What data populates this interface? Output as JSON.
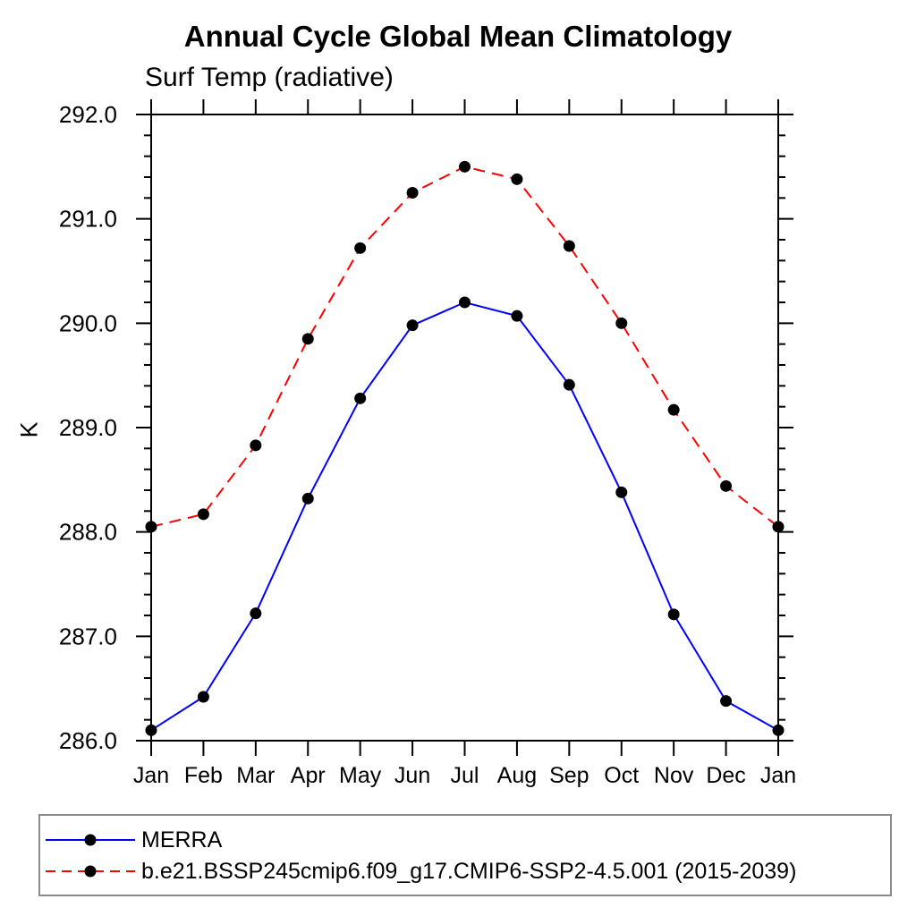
{
  "chart_data": {
    "type": "line",
    "title": "Annual Cycle Global Mean Climatology",
    "subtitle": "Surf Temp (radiative)",
    "ylabel": "K",
    "x_tick_labels": [
      "Jan",
      "Feb",
      "Mar",
      "Apr",
      "May",
      "Jun",
      "Jul",
      "Aug",
      "Sep",
      "Oct",
      "Nov",
      "Dec",
      "Jan"
    ],
    "ylim": [
      286.0,
      292.0
    ],
    "ytick_values": [
      286.0,
      287.0,
      288.0,
      289.0,
      290.0,
      291.0,
      292.0
    ],
    "ytick_labels": [
      "286.0",
      "287.0",
      "288.0",
      "289.0",
      "290.0",
      "291.0",
      "292.0"
    ],
    "yminor_step": 0.2,
    "grid": false,
    "legend_position": "bottom",
    "background_color": "#ffffff",
    "axis_color": "#000000",
    "legend_border_color": "#8a8a8a",
    "series": [
      {
        "name": "MERRA",
        "color": "#0000ff",
        "line_style": "solid",
        "marker": "filled-circle",
        "marker_color": "#000000",
        "values": [
          286.1,
          286.42,
          287.22,
          288.32,
          289.28,
          289.98,
          290.2,
          290.07,
          289.41,
          288.38,
          287.21,
          286.38,
          286.1
        ]
      },
      {
        "name": "b.e21.BSSP245cmip6.f09_g17.CMIP6-SSP2-4.5.001 (2015-2039)",
        "color": "#ff0000",
        "line_style": "dashed",
        "marker": "filled-circle",
        "marker_color": "#000000",
        "values": [
          288.05,
          288.17,
          288.83,
          289.85,
          290.72,
          291.25,
          291.5,
          291.38,
          290.74,
          290.0,
          289.17,
          288.44,
          288.05
        ]
      }
    ]
  }
}
